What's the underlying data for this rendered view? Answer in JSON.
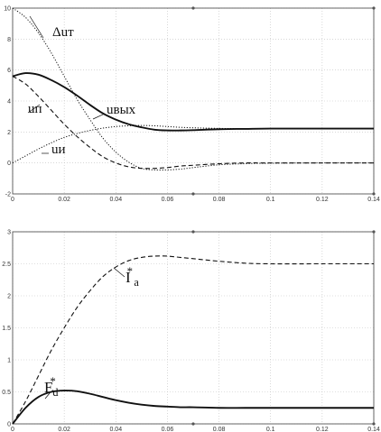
{
  "chart_data": [
    {
      "type": "line",
      "xlim": [
        0,
        0.14
      ],
      "ylim": [
        -2,
        10
      ],
      "x_ticks": [
        "0",
        "0.02",
        "0.04",
        "0.06",
        "0.08",
        "0.1",
        "0.12",
        "0.14"
      ],
      "y_ticks": [
        "-2",
        "0",
        "2",
        "4",
        "6",
        "8",
        "10"
      ],
      "grid": true,
      "series": [
        {
          "name": "Δuт",
          "style": "dotted",
          "x": [
            0,
            0.005,
            0.01,
            0.015,
            0.02,
            0.025,
            0.03,
            0.035,
            0.04,
            0.045,
            0.05,
            0.055,
            0.06,
            0.065,
            0.07,
            0.08,
            0.09,
            0.1,
            0.12,
            0.14
          ],
          "y": [
            10,
            9.4,
            8.4,
            7.1,
            5.6,
            4.1,
            2.8,
            1.6,
            0.7,
            0.05,
            -0.35,
            -0.45,
            -0.45,
            -0.4,
            -0.3,
            -0.12,
            -0.05,
            -0.02,
            0,
            0
          ]
        },
        {
          "name": "uвых",
          "style": "solid",
          "x": [
            0,
            0.005,
            0.01,
            0.015,
            0.02,
            0.025,
            0.03,
            0.035,
            0.04,
            0.045,
            0.05,
            0.055,
            0.06,
            0.065,
            0.07,
            0.08,
            0.09,
            0.1,
            0.12,
            0.14
          ],
          "y": [
            5.6,
            5.8,
            5.7,
            5.35,
            4.9,
            4.35,
            3.75,
            3.2,
            2.8,
            2.5,
            2.3,
            2.15,
            2.1,
            2.1,
            2.12,
            2.18,
            2.2,
            2.22,
            2.22,
            2.22
          ]
        },
        {
          "name": "uп",
          "style": "dashed",
          "x": [
            0,
            0.005,
            0.01,
            0.015,
            0.02,
            0.025,
            0.03,
            0.035,
            0.04,
            0.045,
            0.05,
            0.055,
            0.06,
            0.065,
            0.07,
            0.08,
            0.09,
            0.1,
            0.12,
            0.14
          ],
          "y": [
            5.6,
            5.1,
            4.3,
            3.4,
            2.5,
            1.7,
            1.0,
            0.4,
            0.0,
            -0.25,
            -0.35,
            -0.35,
            -0.3,
            -0.2,
            -0.15,
            -0.05,
            0,
            0,
            0,
            0
          ]
        },
        {
          "name": "uи",
          "style": "dotted",
          "x": [
            0,
            0.005,
            0.01,
            0.015,
            0.02,
            0.025,
            0.03,
            0.035,
            0.04,
            0.045,
            0.05,
            0.055,
            0.06,
            0.065,
            0.07,
            0.08,
            0.09,
            0.1,
            0.12,
            0.14
          ],
          "y": [
            0,
            0.45,
            0.9,
            1.3,
            1.65,
            1.9,
            2.1,
            2.25,
            2.35,
            2.4,
            2.42,
            2.4,
            2.35,
            2.3,
            2.27,
            2.23,
            2.22,
            2.22,
            2.22,
            2.22
          ]
        }
      ]
    },
    {
      "type": "line",
      "xlim": [
        0,
        0.14
      ],
      "ylim": [
        0,
        3
      ],
      "x_ticks": [
        "0",
        "0.02",
        "0.04",
        "0.06",
        "0.08",
        "0.1",
        "0.12",
        "0.14"
      ],
      "y_ticks": [
        "0",
        "0.5",
        "1",
        "1.5",
        "2",
        "2.5",
        "3"
      ],
      "grid": true,
      "series": [
        {
          "name": "I*a",
          "style": "dashed",
          "x": [
            0,
            0.005,
            0.01,
            0.015,
            0.02,
            0.025,
            0.03,
            0.035,
            0.04,
            0.045,
            0.05,
            0.055,
            0.06,
            0.065,
            0.07,
            0.08,
            0.09,
            0.1,
            0.12,
            0.14
          ],
          "y": [
            0,
            0.35,
            0.75,
            1.15,
            1.5,
            1.82,
            2.08,
            2.3,
            2.45,
            2.55,
            2.6,
            2.62,
            2.62,
            2.6,
            2.58,
            2.54,
            2.51,
            2.5,
            2.5,
            2.5
          ]
        },
        {
          "name": "E*d",
          "style": "solid",
          "x": [
            0,
            0.005,
            0.01,
            0.015,
            0.02,
            0.025,
            0.03,
            0.035,
            0.04,
            0.045,
            0.05,
            0.055,
            0.06,
            0.065,
            0.07,
            0.08,
            0.09,
            0.1,
            0.12,
            0.14
          ],
          "y": [
            0,
            0.25,
            0.42,
            0.5,
            0.52,
            0.51,
            0.47,
            0.42,
            0.37,
            0.33,
            0.3,
            0.28,
            0.27,
            0.26,
            0.26,
            0.25,
            0.25,
            0.25,
            0.25,
            0.25
          ]
        }
      ]
    }
  ],
  "labels": [
    {
      "main": "Δuт",
      "sub": "",
      "sup": ""
    },
    {
      "main": "uвых",
      "sub": "",
      "sup": ""
    },
    {
      "main": "uп",
      "sub": "",
      "sup": ""
    },
    {
      "main": "uи",
      "sub": "",
      "sup": ""
    },
    {
      "main": "I",
      "sub": "a",
      "sup": "*"
    },
    {
      "main": "E",
      "sub": "d",
      "sup": "*"
    }
  ],
  "colors": {
    "line": "#111111",
    "grid": "#bfbfbf",
    "frame": "#555555"
  }
}
